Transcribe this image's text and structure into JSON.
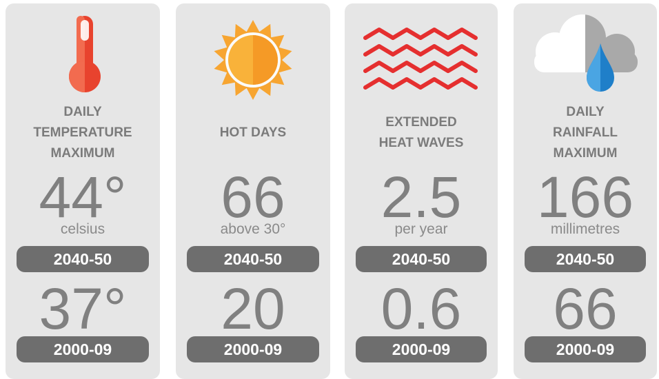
{
  "cards": [
    {
      "title_lines": [
        "DAILY",
        "TEMPERATURE",
        "MAXIMUM"
      ],
      "future_value": "44°",
      "unit": "celsius",
      "future_period": "2040-50",
      "past_value": "37°",
      "past_period": "2000-09"
    },
    {
      "title_lines": [
        "HOT DAYS"
      ],
      "future_value": "66",
      "unit": "above 30°",
      "future_period": "2040-50",
      "past_value": "20",
      "past_period": "2000-09"
    },
    {
      "title_lines": [
        "EXTENDED",
        "HEAT WAVES"
      ],
      "future_value": "2.5",
      "unit": "per year",
      "future_period": "2040-50",
      "past_value": "0.6",
      "past_period": "2000-09"
    },
    {
      "title_lines": [
        "DAILY",
        "RAINFALL",
        "MAXIMUM"
      ],
      "future_value": "166",
      "unit": "millimetres",
      "future_period": "2040-50",
      "past_value": "66",
      "past_period": "2000-09"
    }
  ]
}
